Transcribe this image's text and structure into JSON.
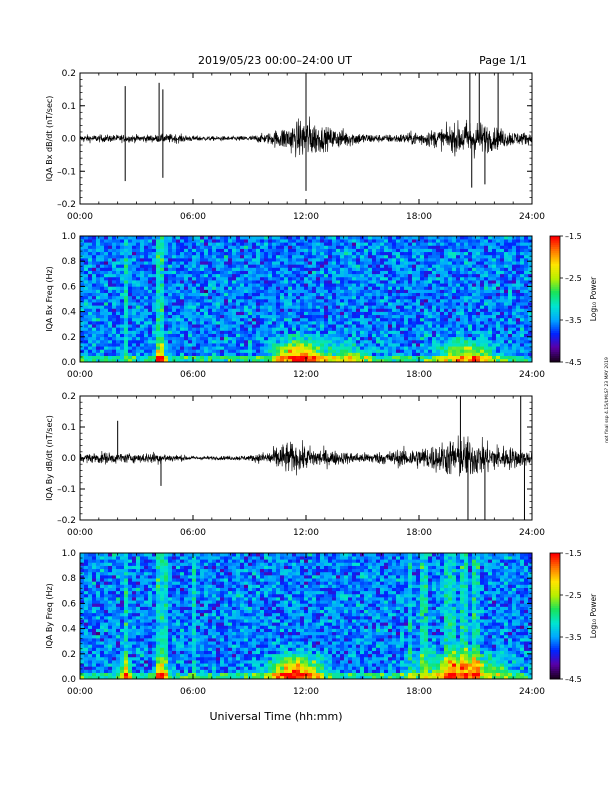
{
  "header": {
    "title": "2019/05/23  00:00–24:00 UT",
    "page": "Page 1/1"
  },
  "footer": {
    "xlabel": "Universal Time (hh:mm)",
    "side_note": "not final ssp 4.15/ŁĦŁS? 23 MAY 2019"
  },
  "colors": {
    "trace": "#000000",
    "colormap": [
      "#1a0020",
      "#5a00a8",
      "#0024ff",
      "#00a8ff",
      "#00e5d0",
      "#19e35a",
      "#b8f000",
      "#ffe600",
      "#ff7a00",
      "#ff0000"
    ]
  },
  "chart_data": [
    {
      "type": "line",
      "ylabel": "IQA Bx dB/dt (nT/sec)",
      "x_ticks": [
        "00:00",
        "06:00",
        "12:00",
        "18:00",
        "24:00"
      ],
      "xlim": [
        0,
        24
      ],
      "ylim": [
        -0.2,
        0.2
      ],
      "y_ticks": [
        "0.2",
        "0.1",
        "0.0",
        "–0.1",
        "–0.2"
      ],
      "envelope": {
        "x": [
          0,
          2,
          2.5,
          4,
          5,
          6,
          7,
          8,
          9,
          10,
          10.5,
          11,
          11.5,
          12,
          12.5,
          13,
          14,
          15,
          16,
          17,
          18,
          19,
          20,
          20.5,
          21,
          21.5,
          22,
          23,
          24
        ],
        "amplitude": [
          0.02,
          0.02,
          0.02,
          0.02,
          0.025,
          0.015,
          0.012,
          0.012,
          0.015,
          0.03,
          0.05,
          0.07,
          0.09,
          0.12,
          0.09,
          0.06,
          0.05,
          0.03,
          0.02,
          0.025,
          0.04,
          0.05,
          0.08,
          0.1,
          0.1,
          0.08,
          0.06,
          0.04,
          0.03
        ]
      },
      "spikes": [
        {
          "x": 2.4,
          "y": 0.16
        },
        {
          "x": 2.4,
          "y": -0.13
        },
        {
          "x": 4.2,
          "y": 0.17
        },
        {
          "x": 4.4,
          "y": 0.15
        },
        {
          "x": 4.4,
          "y": -0.12
        },
        {
          "x": 12.0,
          "y": 0.2
        },
        {
          "x": 12.0,
          "y": -0.16
        },
        {
          "x": 20.7,
          "y": 0.2
        },
        {
          "x": 21.2,
          "y": 0.2
        },
        {
          "x": 22.2,
          "y": 0.2
        },
        {
          "x": 20.8,
          "y": -0.15
        },
        {
          "x": 21.5,
          "y": -0.14
        }
      ]
    },
    {
      "type": "heatmap",
      "ylabel": "IQA Bx Freq (Hz)",
      "x_ticks": [
        "00:00",
        "06:00",
        "12:00",
        "18:00",
        "24:00"
      ],
      "xlim": [
        0,
        24
      ],
      "ylim": [
        0,
        1.0
      ],
      "y_ticks": [
        "1.0",
        "0.8",
        "0.6",
        "0.4",
        "0.2",
        "0.0"
      ],
      "colorbar": {
        "label": "Log₁₀ Power",
        "range": [
          -4.5,
          -1.5
        ],
        "ticks": [
          "–1.5",
          "–2.5",
          "–3.5",
          "–4.5"
        ]
      },
      "background_log_power": -3.6,
      "lowfreq_hotspots": [
        {
          "x": 11.5,
          "f": 0.05,
          "spread_hours": 1.2,
          "peak": -1.9
        },
        {
          "x": 20.5,
          "f": 0.05,
          "spread_hours": 1.5,
          "peak": -2.4
        },
        {
          "x": 4.3,
          "f": 0.03,
          "spread_hours": 0.3,
          "peak": -2.3
        },
        {
          "x": 14.0,
          "f": 0.03,
          "spread_hours": 1.5,
          "peak": -2.8
        }
      ],
      "vertical_streaks_hours": [
        2.4,
        4.2,
        4.4
      ]
    },
    {
      "type": "line",
      "ylabel": "IQA By dB/dt (nT/sec)",
      "x_ticks": [
        "00:00",
        "06:00",
        "12:00",
        "18:00",
        "24:00"
      ],
      "xlim": [
        0,
        24
      ],
      "ylim": [
        -0.2,
        0.2
      ],
      "y_ticks": [
        "0.2",
        "0.1",
        "0.0",
        "–0.1",
        "–0.2"
      ],
      "envelope": {
        "x": [
          0,
          1,
          2,
          3,
          4,
          5,
          6,
          7,
          8,
          9,
          10,
          10.5,
          11,
          11.5,
          12,
          12.5,
          13,
          14,
          15,
          16,
          17,
          18,
          19,
          19.5,
          20,
          20.5,
          21,
          22,
          23,
          24
        ],
        "amplitude": [
          0.02,
          0.035,
          0.03,
          0.025,
          0.035,
          0.02,
          0.012,
          0.01,
          0.012,
          0.015,
          0.04,
          0.07,
          0.09,
          0.08,
          0.07,
          0.06,
          0.05,
          0.035,
          0.03,
          0.035,
          0.05,
          0.06,
          0.08,
          0.1,
          0.12,
          0.12,
          0.1,
          0.08,
          0.06,
          0.04
        ]
      },
      "spikes": [
        {
          "x": 2.0,
          "y": 0.12
        },
        {
          "x": 4.3,
          "y": -0.09
        },
        {
          "x": 20.2,
          "y": 0.2
        },
        {
          "x": 20.6,
          "y": -0.2
        },
        {
          "x": 21.5,
          "y": -0.2
        },
        {
          "x": 23.4,
          "y": 0.2
        },
        {
          "x": 23.6,
          "y": -0.2
        }
      ]
    },
    {
      "type": "heatmap",
      "ylabel": "IQA By Freq (Hz)",
      "x_ticks": [
        "00:00",
        "06:00",
        "12:00",
        "18:00",
        "24:00"
      ],
      "xlim": [
        0,
        24
      ],
      "ylim": [
        0,
        1.0
      ],
      "y_ticks": [
        "1.0",
        "0.8",
        "0.6",
        "0.4",
        "0.2",
        "0.0"
      ],
      "colorbar": {
        "label": "Log₁₀ Power",
        "range": [
          -4.5,
          -1.5
        ],
        "ticks": [
          "–1.5",
          "–2.5",
          "–3.5",
          "–4.5"
        ]
      },
      "background_log_power": -3.6,
      "lowfreq_hotspots": [
        {
          "x": 11.4,
          "f": 0.06,
          "spread_hours": 1.3,
          "peak": -1.8
        },
        {
          "x": 20.3,
          "f": 0.08,
          "spread_hours": 2.0,
          "peak": -2.2
        },
        {
          "x": 2.4,
          "f": 0.03,
          "spread_hours": 0.3,
          "peak": -2.4
        },
        {
          "x": 4.3,
          "f": 0.03,
          "spread_hours": 0.3,
          "peak": -2.4
        }
      ],
      "vertical_streaks_hours": [
        2.4,
        4.2,
        4.5,
        6.1,
        17.5,
        18.3,
        19.5,
        19.8,
        20.4,
        21.0
      ]
    }
  ]
}
